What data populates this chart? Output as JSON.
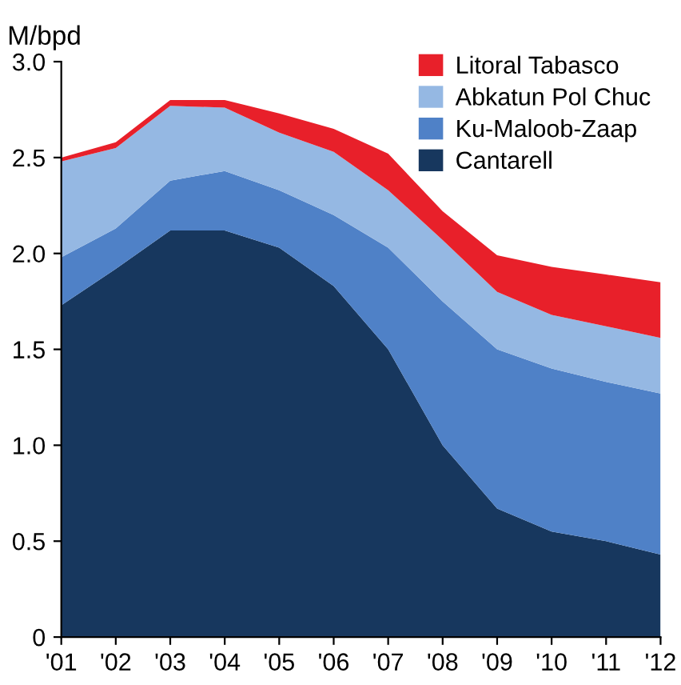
{
  "chart_data": {
    "type": "area",
    "stacked": true,
    "ylabel": "M/bpd",
    "categories": [
      "'01",
      "'02",
      "'03",
      "'04",
      "'05",
      "'06",
      "'07",
      "'08",
      "'09",
      "'10",
      "'11",
      "'12"
    ],
    "series": [
      {
        "name": "Cantarell",
        "color": "#17375e",
        "values": [
          1.73,
          1.92,
          2.12,
          2.12,
          2.03,
          1.83,
          1.5,
          1.0,
          0.67,
          0.55,
          0.5,
          0.43
        ]
      },
      {
        "name": "Ku-Maloob-Zaap",
        "color": "#4f81c7",
        "values": [
          0.25,
          0.21,
          0.26,
          0.31,
          0.3,
          0.37,
          0.53,
          0.75,
          0.83,
          0.85,
          0.83,
          0.84
        ]
      },
      {
        "name": "Abkatun Pol Chuc",
        "color": "#95b8e3",
        "values": [
          0.5,
          0.42,
          0.39,
          0.33,
          0.3,
          0.33,
          0.3,
          0.32,
          0.3,
          0.28,
          0.29,
          0.29
        ]
      },
      {
        "name": "Litoral Tabasco",
        "color": "#e8202a",
        "values": [
          0.02,
          0.03,
          0.03,
          0.04,
          0.1,
          0.12,
          0.19,
          0.15,
          0.19,
          0.25,
          0.27,
          0.29
        ]
      }
    ],
    "ylim": [
      0,
      3.0
    ],
    "yticks": [
      0,
      0.5,
      {
        "value": 1,
        "label": "1.0"
      },
      1.5,
      {
        "value": 2,
        "label": "2.0"
      },
      2.5,
      {
        "value": 3,
        "label": "3.0"
      }
    ],
    "legend": "top right",
    "grid": false
  }
}
